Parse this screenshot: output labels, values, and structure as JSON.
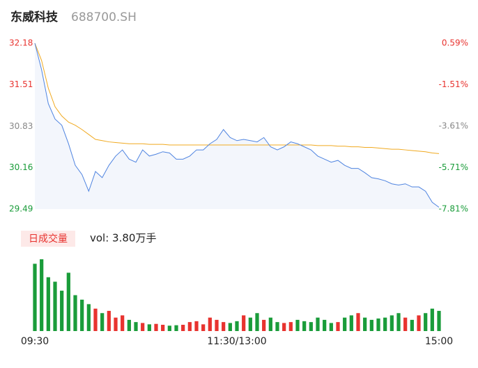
{
  "chart_data": {
    "type": "intraday",
    "title": "东威科技",
    "subtitle": "688700.SH",
    "x": [
      0,
      4,
      8,
      12,
      16,
      20,
      24,
      28,
      32,
      36,
      40,
      44,
      48,
      52,
      56,
      60,
      64,
      68,
      72,
      76,
      80,
      84,
      88,
      92,
      96,
      100,
      104,
      108,
      112,
      116,
      120,
      124,
      128,
      132,
      136,
      140,
      144,
      148,
      152,
      156,
      160,
      164,
      168,
      172,
      176,
      180,
      184,
      188,
      192,
      196,
      200,
      204,
      208,
      212,
      216,
      220,
      224,
      228,
      232,
      236,
      240
    ],
    "xlim": [
      0,
      240
    ],
    "xticks": [
      {
        "value": 0,
        "label": "09:30"
      },
      {
        "value": 120,
        "label": "11:30/13:00"
      },
      {
        "value": 240,
        "label": "15:00"
      }
    ],
    "ylim": [
      29.49,
      32.18
    ],
    "yticks": [
      32.18,
      31.51,
      30.83,
      30.16,
      29.49
    ],
    "y2lim": [
      -7.81,
      0.59
    ],
    "y2ticks": [
      {
        "value": 0.59,
        "label": "0.59%"
      },
      {
        "value": -1.51,
        "label": "-1.51%"
      },
      {
        "value": -3.61,
        "label": "-3.61%"
      },
      {
        "value": -5.71,
        "label": "-5.71%"
      },
      {
        "value": -7.81,
        "label": "-7.81%"
      }
    ],
    "up_color": "#e8332f",
    "down_color": "#1a9c3a",
    "flat_color": "#888888",
    "series": [
      {
        "name": "price",
        "color": "#4f84e0",
        "values": [
          32.18,
          31.75,
          31.2,
          30.95,
          30.85,
          30.55,
          30.2,
          30.05,
          29.78,
          30.1,
          30.0,
          30.2,
          30.35,
          30.45,
          30.3,
          30.25,
          30.45,
          30.35,
          30.38,
          30.42,
          30.4,
          30.3,
          30.3,
          30.35,
          30.45,
          30.45,
          30.55,
          30.62,
          30.78,
          30.65,
          30.6,
          30.62,
          30.6,
          30.58,
          30.65,
          30.5,
          30.45,
          30.5,
          30.58,
          30.55,
          30.5,
          30.45,
          30.35,
          30.3,
          30.25,
          30.28,
          30.2,
          30.15,
          30.15,
          30.08,
          30.0,
          29.98,
          29.95,
          29.9,
          29.88,
          29.9,
          29.85,
          29.85,
          29.78,
          29.6,
          29.52
        ]
      },
      {
        "name": "average",
        "color": "#f0a91f",
        "values": [
          32.18,
          31.9,
          31.45,
          31.15,
          31.0,
          30.9,
          30.85,
          30.78,
          30.7,
          30.62,
          30.6,
          30.58,
          30.57,
          30.56,
          30.55,
          30.55,
          30.55,
          30.54,
          30.54,
          30.54,
          30.53,
          30.53,
          30.53,
          30.53,
          30.53,
          30.53,
          30.53,
          30.53,
          30.53,
          30.53,
          30.53,
          30.53,
          30.53,
          30.53,
          30.53,
          30.53,
          30.53,
          30.53,
          30.53,
          30.53,
          30.53,
          30.53,
          30.52,
          30.52,
          30.52,
          30.51,
          30.51,
          30.5,
          30.5,
          30.49,
          30.49,
          30.48,
          30.47,
          30.46,
          30.46,
          30.45,
          30.44,
          30.43,
          30.42,
          30.4,
          30.39
        ]
      }
    ],
    "volume": {
      "label": "日成交量",
      "summary": "vol: 3.80万手",
      "values": [
        1500,
        1600,
        1200,
        1100,
        900,
        1300,
        800,
        700,
        600,
        500,
        400,
        450,
        300,
        350,
        250,
        200,
        180,
        150,
        160,
        140,
        120,
        130,
        140,
        200,
        220,
        150,
        300,
        250,
        200,
        180,
        220,
        350,
        300,
        400,
        250,
        300,
        200,
        180,
        200,
        250,
        220,
        200,
        300,
        250,
        180,
        200,
        300,
        350,
        400,
        300,
        250,
        280,
        300,
        350,
        400,
        300,
        250,
        350,
        400,
        500,
        450
      ]
    }
  }
}
